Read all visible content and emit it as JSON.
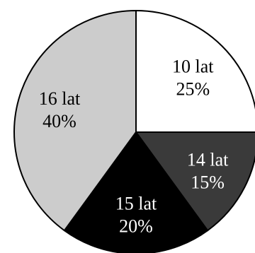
{
  "chart_data": {
    "type": "pie",
    "title": "",
    "start": "top",
    "direction": "clockwise",
    "slices": [
      {
        "category": "10 lat",
        "value": 25,
        "percent_label": "25%",
        "color": "#ffffff",
        "text_color": "#000000"
      },
      {
        "category": "14 lat",
        "value": 15,
        "percent_label": "15%",
        "color": "#3a3a3a",
        "text_color": "#ffffff"
      },
      {
        "category": "15 lat",
        "value": 20,
        "percent_label": "20%",
        "color": "#000000",
        "text_color": "#ffffff"
      },
      {
        "category": "16 lat",
        "value": 40,
        "percent_label": "40%",
        "color": "#cccccc",
        "text_color": "#000000"
      }
    ]
  }
}
